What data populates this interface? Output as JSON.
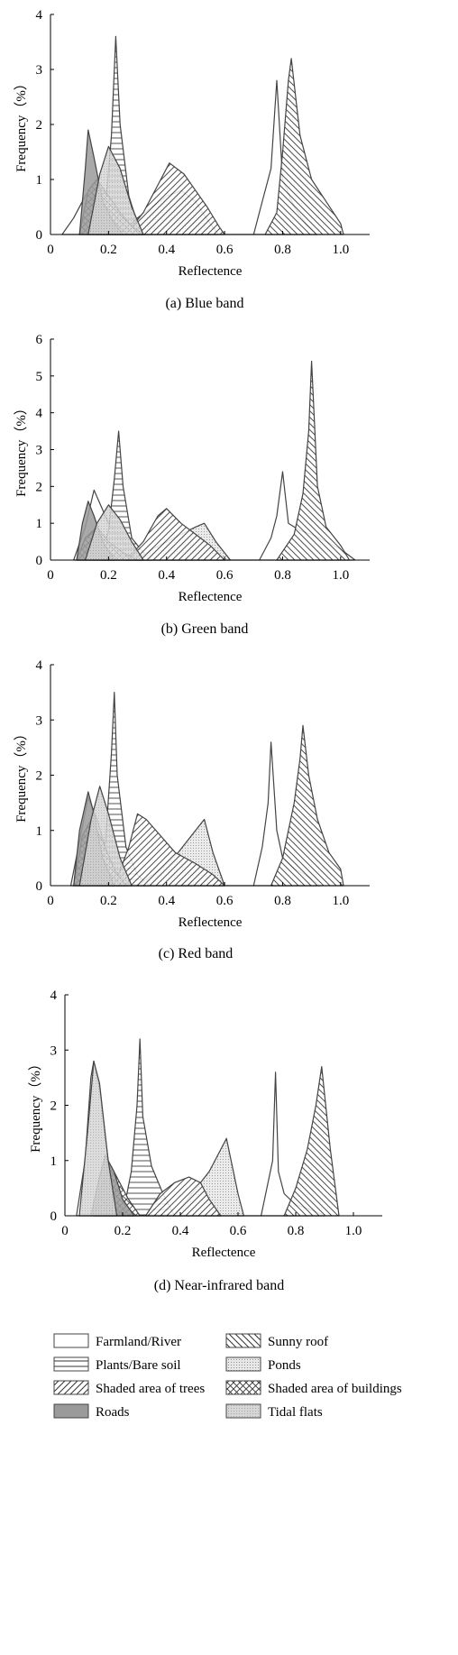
{
  "figure": {
    "legend": [
      {
        "label": "Farmland/River",
        "pattern": "plain"
      },
      {
        "label": "Sunny roof",
        "pattern": "backslash"
      },
      {
        "label": "Plants/Bare soil",
        "pattern": "horizontal"
      },
      {
        "label": "Ponds",
        "pattern": "dots"
      },
      {
        "label": "Shaded area of trees",
        "pattern": "slash"
      },
      {
        "label": "Shaded area of buildings",
        "pattern": "cross"
      },
      {
        "label": "Roads",
        "pattern": "darkgray"
      },
      {
        "label": "Tidal flats",
        "pattern": "lightdots"
      }
    ]
  },
  "chart_data": [
    {
      "type": "area",
      "caption": "(a) Blue band",
      "xlabel": "Reflectence",
      "ylabel": "Frequency（%）",
      "xlim": [
        0,
        1.1
      ],
      "ylim": [
        0,
        4
      ],
      "xticks": [
        0,
        0.2,
        0.4,
        0.6,
        0.8,
        1.0
      ],
      "xtick_labels": [
        "0",
        "0.2",
        "0.4",
        "0.6",
        "0.8",
        "1.0"
      ],
      "yticks": [
        0,
        1,
        2,
        3,
        4
      ],
      "ytick_labels": [
        "0",
        "1",
        "2",
        "3",
        "4"
      ],
      "series": [
        {
          "name": "Farmland/River",
          "x": [
            0.04,
            0.08,
            0.12,
            0.15,
            0.2,
            0.25,
            0.3,
            0.33,
            0.7,
            0.73,
            0.76,
            0.78,
            0.8,
            0.84,
            0.88,
            0.92
          ],
          "y": [
            0,
            0.3,
            0.7,
            0.9,
            0.6,
            0.3,
            0.1,
            0,
            0,
            0.6,
            1.2,
            2.8,
            1.0,
            0.5,
            0.2,
            0
          ]
        },
        {
          "name": "Sunny roof",
          "x": [
            0.74,
            0.78,
            0.8,
            0.82,
            0.83,
            0.86,
            0.9,
            0.95,
            1.0,
            1.01
          ],
          "y": [
            0,
            0.4,
            1.5,
            2.8,
            3.2,
            1.8,
            1.0,
            0.6,
            0.2,
            0
          ]
        },
        {
          "name": "Plants/Bare soil",
          "x": [
            0.16,
            0.19,
            0.21,
            0.225,
            0.24,
            0.27,
            0.3,
            0.34
          ],
          "y": [
            0,
            0.5,
            1.8,
            3.6,
            2.0,
            0.7,
            0.2,
            0
          ]
        },
        {
          "name": "Ponds",
          "x": [
            0.24,
            0.3,
            0.35,
            0.4,
            0.45,
            0.5,
            0.55,
            0.58
          ],
          "y": [
            0,
            0.3,
            0.5,
            0.7,
            0.8,
            0.6,
            0.2,
            0
          ]
        },
        {
          "name": "Shaded area of trees",
          "x": [
            0.26,
            0.32,
            0.37,
            0.41,
            0.46,
            0.5,
            0.54,
            0.58,
            0.6
          ],
          "y": [
            0,
            0.4,
            0.9,
            1.3,
            1.1,
            0.8,
            0.5,
            0.15,
            0
          ]
        },
        {
          "name": "Shaded area of buildings",
          "x": [
            0.1,
            0.13,
            0.16,
            0.2,
            0.24,
            0.28,
            0.32
          ],
          "y": [
            0,
            0.8,
            1.0,
            0.7,
            0.4,
            0.15,
            0
          ]
        },
        {
          "name": "Roads",
          "x": [
            0.1,
            0.12,
            0.13,
            0.15,
            0.18,
            0.22,
            0.25
          ],
          "y": [
            0,
            1.2,
            1.9,
            1.4,
            0.6,
            0.2,
            0
          ]
        },
        {
          "name": "Tidal flats",
          "x": [
            0.13,
            0.17,
            0.2,
            0.24,
            0.28,
            0.32
          ],
          "y": [
            0,
            1.1,
            1.6,
            1.2,
            0.5,
            0
          ]
        }
      ]
    },
    {
      "type": "area",
      "caption": "(b) Green band",
      "xlabel": "Reflectence",
      "ylabel": "Frequency（%）",
      "xlim": [
        0,
        1.1
      ],
      "ylim": [
        0,
        6
      ],
      "xticks": [
        0,
        0.2,
        0.4,
        0.6,
        0.8,
        1.0
      ],
      "xtick_labels": [
        "0",
        "0.2",
        "0.4",
        "0.6",
        "0.8",
        "1.0"
      ],
      "yticks": [
        0,
        1,
        2,
        3,
        4,
        5,
        6
      ],
      "ytick_labels": [
        "0",
        "1",
        "2",
        "3",
        "4",
        "5",
        "6"
      ],
      "series": [
        {
          "name": "Farmland/River",
          "x": [
            0.08,
            0.12,
            0.15,
            0.2,
            0.26,
            0.3,
            0.72,
            0.76,
            0.78,
            0.8,
            0.82,
            0.86,
            0.9,
            0.95,
            1.0,
            1.05
          ],
          "y": [
            0,
            0.9,
            1.9,
            1.0,
            0.4,
            0,
            0,
            0.6,
            1.2,
            2.4,
            1.0,
            0.8,
            0.7,
            0.5,
            0.3,
            0
          ]
        },
        {
          "name": "Sunny roof",
          "x": [
            0.78,
            0.84,
            0.87,
            0.89,
            0.9,
            0.92,
            0.95,
            1.0,
            1.03
          ],
          "y": [
            0,
            0.7,
            1.8,
            3.5,
            5.4,
            2.0,
            0.9,
            0.4,
            0
          ]
        },
        {
          "name": "Plants/Bare soil",
          "x": [
            0.17,
            0.2,
            0.22,
            0.235,
            0.25,
            0.28,
            0.32,
            0.35
          ],
          "y": [
            0,
            0.8,
            2.2,
            3.5,
            2.0,
            0.6,
            0.2,
            0
          ]
        },
        {
          "name": "Ponds",
          "x": [
            0.3,
            0.35,
            0.4,
            0.45,
            0.5,
            0.53,
            0.57,
            0.62
          ],
          "y": [
            0,
            0.3,
            0.5,
            0.7,
            0.9,
            1.0,
            0.5,
            0
          ]
        },
        {
          "name": "Shaded area of trees",
          "x": [
            0.26,
            0.32,
            0.37,
            0.4,
            0.45,
            0.5,
            0.55,
            0.6
          ],
          "y": [
            0,
            0.5,
            1.2,
            1.4,
            1.0,
            0.7,
            0.4,
            0
          ]
        },
        {
          "name": "Shaded area of buildings",
          "x": [
            0.09,
            0.12,
            0.16,
            0.2,
            0.25,
            0.3
          ],
          "y": [
            0,
            0.6,
            0.9,
            0.5,
            0.2,
            0
          ]
        },
        {
          "name": "Roads",
          "x": [
            0.09,
            0.11,
            0.13,
            0.15,
            0.18,
            0.22
          ],
          "y": [
            0,
            1.0,
            1.6,
            1.2,
            0.5,
            0
          ]
        },
        {
          "name": "Tidal flats",
          "x": [
            0.12,
            0.16,
            0.2,
            0.24,
            0.28,
            0.32
          ],
          "y": [
            0,
            1.0,
            1.5,
            1.1,
            0.5,
            0
          ]
        }
      ]
    },
    {
      "type": "area",
      "caption": "(c) Red band",
      "xlabel": "Reflectence",
      "ylabel": "Frequency（%）",
      "xlim": [
        0,
        1.1
      ],
      "ylim": [
        0,
        4
      ],
      "xticks": [
        0,
        0.2,
        0.4,
        0.6,
        0.8,
        1.0
      ],
      "xtick_labels": [
        "0",
        "0.2",
        "0.4",
        "0.6",
        "0.8",
        "1.0"
      ],
      "yticks": [
        0,
        1,
        2,
        3,
        4
      ],
      "ytick_labels": [
        "0",
        "1",
        "2",
        "3",
        "4"
      ],
      "series": [
        {
          "name": "Farmland/River",
          "x": [
            0.07,
            0.1,
            0.13,
            0.16,
            0.2,
            0.25,
            0.3,
            0.7,
            0.73,
            0.75,
            0.76,
            0.78,
            0.8,
            0.84,
            0.88,
            0.93
          ],
          "y": [
            0,
            0.8,
            1.6,
            1.2,
            0.5,
            0.2,
            0,
            0,
            0.7,
            1.5,
            2.6,
            1.0,
            0.5,
            0.3,
            0.2,
            0
          ]
        },
        {
          "name": "Sunny roof",
          "x": [
            0.76,
            0.8,
            0.84,
            0.86,
            0.87,
            0.89,
            0.92,
            0.96,
            1.0,
            1.01
          ],
          "y": [
            0,
            0.5,
            1.5,
            2.3,
            2.9,
            2.0,
            1.2,
            0.6,
            0.3,
            0
          ]
        },
        {
          "name": "Plants/Bare soil",
          "x": [
            0.16,
            0.19,
            0.21,
            0.22,
            0.23,
            0.26,
            0.3,
            0.34
          ],
          "y": [
            0,
            0.8,
            2.4,
            3.5,
            2.0,
            0.7,
            0.2,
            0
          ]
        },
        {
          "name": "Ponds",
          "x": [
            0.3,
            0.38,
            0.44,
            0.5,
            0.53,
            0.56,
            0.6
          ],
          "y": [
            0,
            0.3,
            0.6,
            1.0,
            1.2,
            0.6,
            0
          ]
        },
        {
          "name": "Shaded area of trees",
          "x": [
            0.22,
            0.27,
            0.3,
            0.33,
            0.38,
            0.43,
            0.5,
            0.56,
            0.6
          ],
          "y": [
            0,
            0.7,
            1.3,
            1.2,
            0.9,
            0.6,
            0.4,
            0.2,
            0
          ]
        },
        {
          "name": "Shaded area of buildings",
          "x": [
            0.08,
            0.11,
            0.14,
            0.18,
            0.22,
            0.26
          ],
          "y": [
            0,
            0.9,
            1.2,
            0.8,
            0.3,
            0
          ]
        },
        {
          "name": "Roads",
          "x": [
            0.08,
            0.1,
            0.13,
            0.15,
            0.18,
            0.22
          ],
          "y": [
            0,
            1.0,
            1.7,
            1.3,
            0.5,
            0
          ]
        },
        {
          "name": "Tidal flats",
          "x": [
            0.1,
            0.14,
            0.17,
            0.2,
            0.24,
            0.28
          ],
          "y": [
            0,
            1.2,
            1.8,
            1.3,
            0.5,
            0
          ]
        }
      ]
    },
    {
      "type": "area",
      "caption": "(d) Near-infrared band",
      "xlabel": "Reflectence",
      "ylabel": "Frequency（%）",
      "xlim": [
        0,
        1.1
      ],
      "ylim": [
        0,
        4
      ],
      "xticks": [
        0,
        0.2,
        0.4,
        0.6,
        0.8,
        1.0
      ],
      "xtick_labels": [
        "0",
        "0.2",
        "0.4",
        "0.6",
        "0.8",
        "1.0"
      ],
      "yticks": [
        0,
        1,
        2,
        3,
        4
      ],
      "ytick_labels": [
        "0",
        "1",
        "2",
        "3",
        "4"
      ],
      "series": [
        {
          "name": "Farmland/River",
          "x": [
            0.04,
            0.07,
            0.09,
            0.1,
            0.12,
            0.15,
            0.18,
            0.2,
            0.68,
            0.7,
            0.72,
            0.73,
            0.74,
            0.76,
            0.8,
            0.86,
            0.9
          ],
          "y": [
            0,
            1.0,
            2.5,
            2.8,
            2.3,
            1.0,
            0.3,
            0,
            0,
            0.5,
            1.0,
            2.6,
            0.8,
            0.4,
            0.2,
            0.1,
            0
          ]
        },
        {
          "name": "Sunny roof",
          "x": [
            0.76,
            0.8,
            0.84,
            0.87,
            0.89,
            0.9,
            0.92,
            0.94,
            0.95
          ],
          "y": [
            0,
            0.5,
            1.2,
            2.0,
            2.7,
            2.2,
            1.2,
            0.4,
            0
          ]
        },
        {
          "name": "Plants/Bare soil",
          "x": [
            0.2,
            0.23,
            0.25,
            0.26,
            0.27,
            0.3,
            0.34,
            0.38
          ],
          "y": [
            0,
            0.8,
            2.0,
            3.2,
            1.8,
            0.9,
            0.4,
            0
          ]
        },
        {
          "name": "Ponds",
          "x": [
            0.38,
            0.44,
            0.5,
            0.54,
            0.56,
            0.58,
            0.6,
            0.62
          ],
          "y": [
            0,
            0.4,
            0.8,
            1.2,
            1.4,
            0.9,
            0.4,
            0
          ]
        },
        {
          "name": "Shaded area of trees",
          "x": [
            0.28,
            0.33,
            0.38,
            0.43,
            0.47,
            0.5,
            0.54
          ],
          "y": [
            0,
            0.4,
            0.6,
            0.7,
            0.6,
            0.3,
            0
          ]
        },
        {
          "name": "Shaded area of buildings",
          "x": [
            0.1,
            0.13,
            0.16,
            0.19,
            0.22,
            0.26
          ],
          "y": [
            0,
            0.6,
            0.9,
            0.6,
            0.3,
            0
          ]
        },
        {
          "name": "Roads",
          "x": [
            0.09,
            0.12,
            0.14,
            0.17,
            0.2,
            0.24
          ],
          "y": [
            0,
            0.7,
            1.1,
            0.8,
            0.3,
            0
          ]
        },
        {
          "name": "Tidal flats",
          "x": [
            0.05,
            0.08,
            0.1,
            0.12,
            0.15,
            0.18
          ],
          "y": [
            0,
            1.6,
            2.8,
            2.4,
            1.0,
            0
          ]
        }
      ]
    }
  ]
}
